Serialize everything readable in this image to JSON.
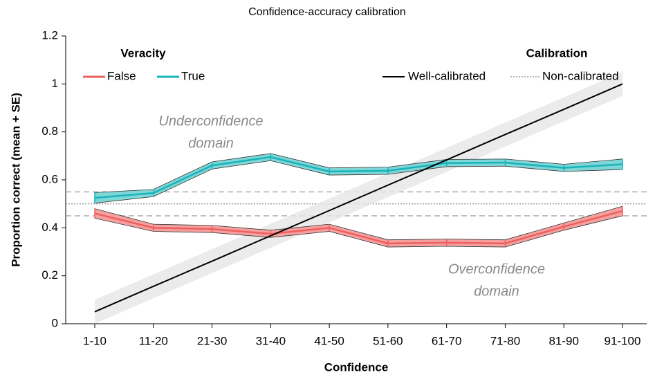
{
  "chart_data": {
    "type": "line",
    "title": "Confidence-accuracy calibration",
    "xlabel": "Confidence",
    "ylabel": "Proportion correct (mean + SE)",
    "categories": [
      "1-10",
      "11-20",
      "21-30",
      "31-40",
      "41-50",
      "51-60",
      "61-70",
      "71-80",
      "81-90",
      "91-100"
    ],
    "ylim": [
      0,
      1.2
    ],
    "yticks": [
      0,
      0.2,
      0.4,
      0.6,
      0.8,
      1,
      1.2
    ],
    "legend_title": "Veracity",
    "series": [
      {
        "name": "False",
        "color": "#ee5f5f",
        "fill": "#f4a09e",
        "values": [
          0.46,
          0.4,
          0.395,
          0.375,
          0.4,
          0.335,
          0.338,
          0.335,
          0.405,
          0.47
        ],
        "errors": [
          0.02,
          0.015,
          0.015,
          0.015,
          0.015,
          0.015,
          0.015,
          0.015,
          0.015,
          0.02
        ]
      },
      {
        "name": "True",
        "color": "#17b3bb",
        "fill": "#7fd6d6",
        "values": [
          0.525,
          0.545,
          0.66,
          0.695,
          0.635,
          0.638,
          0.67,
          0.672,
          0.65,
          0.665
        ],
        "errors": [
          0.022,
          0.015,
          0.015,
          0.015,
          0.015,
          0.015,
          0.015,
          0.015,
          0.015,
          0.022
        ]
      }
    ],
    "calibration": {
      "title": "Calibration",
      "well": {
        "name": "Well-calibrated",
        "color": "#000000",
        "values": [
          0.05,
          0.156,
          0.261,
          0.367,
          0.472,
          0.578,
          0.683,
          0.789,
          0.894,
          1.0
        ],
        "band": 0.05
      },
      "non": {
        "name": "Non-calibrated",
        "color": "#999999",
        "value": 0.5,
        "band": 0.05
      }
    },
    "annotations": [
      {
        "lines": [
          "Underconfidence",
          "domain"
        ]
      },
      {
        "lines": [
          "Overconfidence",
          "domain"
        ]
      }
    ]
  }
}
